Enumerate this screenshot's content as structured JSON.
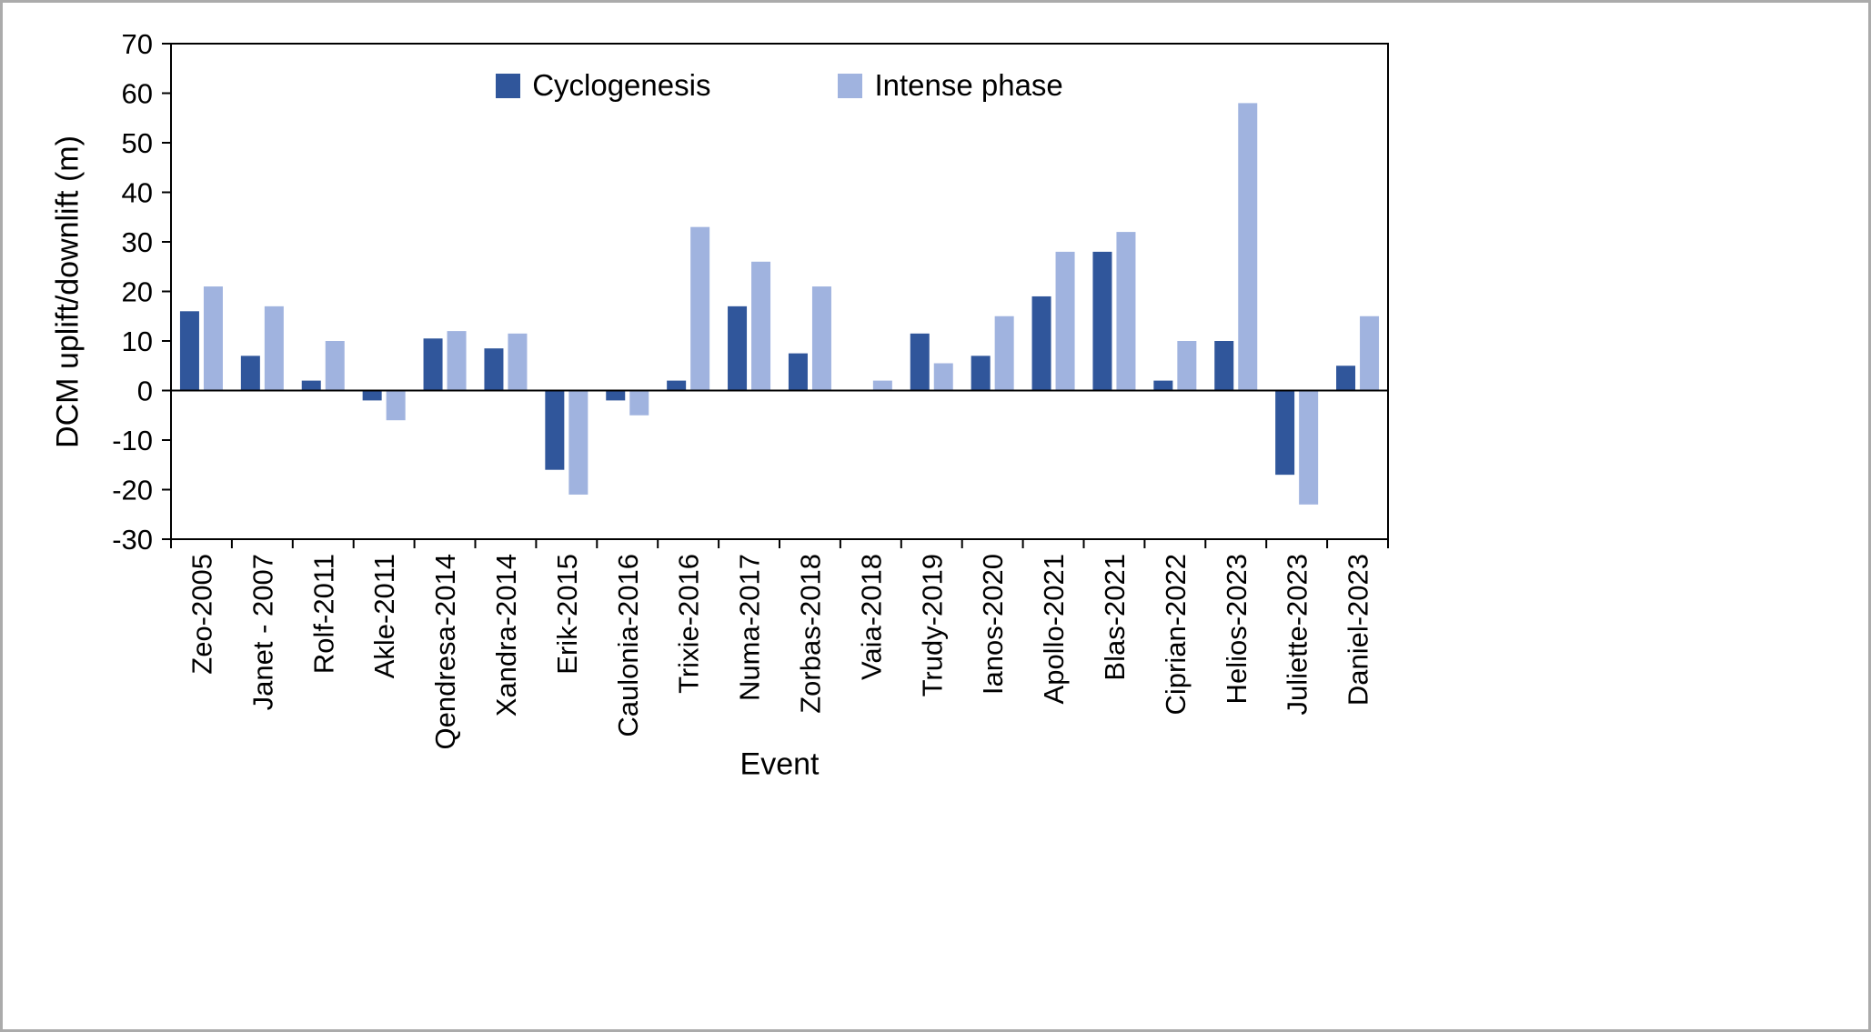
{
  "chart_data": {
    "type": "bar",
    "title": "",
    "xlabel": "Event",
    "ylabel": "DCM uplift/downlift (m)",
    "ylim": [
      -30,
      70
    ],
    "ytick_step": 10,
    "grid": false,
    "legend_position": "top-center",
    "categories": [
      "Zeo-2005",
      "Janet - 2007",
      "Rolf-2011",
      "Akle-2011",
      "Qendresa-2014",
      "Xandra-2014",
      "Erik-2015",
      "Caulonia-2016",
      "Trixie-2016",
      "Numa-2017",
      "Zorbas-2018",
      "Vaia-2018",
      "Trudy-2019",
      "Ianos-2020",
      "Apollo-2021",
      "Blas-2021",
      "Ciprian-2022",
      "Helios-2023",
      "Juliette-2023",
      "Daniel-2023"
    ],
    "series": [
      {
        "name": "Cyclogenesis",
        "color": "#30569B",
        "values": [
          16,
          7,
          2,
          -2,
          10.5,
          8.5,
          -16,
          -2,
          2,
          17,
          7.5,
          0,
          11.5,
          7,
          19,
          28,
          2,
          10,
          -17,
          5
        ]
      },
      {
        "name": "Intense phase",
        "color": "#A0B3DF",
        "values": [
          21,
          17,
          10,
          -6,
          12,
          11.5,
          -21,
          -5,
          33,
          26,
          21,
          2,
          5.5,
          15,
          28,
          32,
          10,
          58,
          -23,
          15
        ]
      }
    ],
    "colors": {
      "axis": "#000000",
      "frame_border": "#ababab"
    }
  }
}
